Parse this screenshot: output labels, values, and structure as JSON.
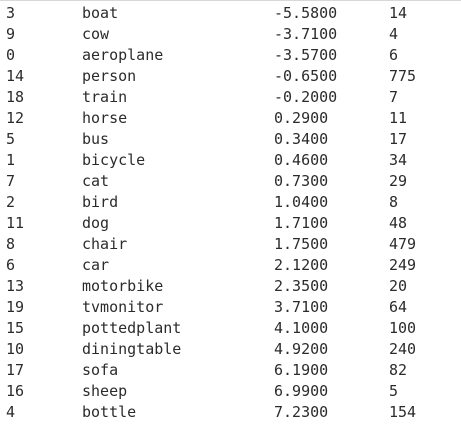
{
  "rows": [
    {
      "id": "3",
      "name": "boat",
      "score": "-5.5800",
      "count": "14"
    },
    {
      "id": "9",
      "name": "cow",
      "score": "-3.7100",
      "count": "4"
    },
    {
      "id": "0",
      "name": "aeroplane",
      "score": "-3.5700",
      "count": "6"
    },
    {
      "id": "14",
      "name": "person",
      "score": "-0.6500",
      "count": "775"
    },
    {
      "id": "18",
      "name": "train",
      "score": "-0.2000",
      "count": "7"
    },
    {
      "id": "12",
      "name": "horse",
      "score": "0.2900",
      "count": "11"
    },
    {
      "id": "5",
      "name": "bus",
      "score": "0.3400",
      "count": "17"
    },
    {
      "id": "1",
      "name": "bicycle",
      "score": "0.4600",
      "count": "34"
    },
    {
      "id": "7",
      "name": "cat",
      "score": "0.7300",
      "count": "29"
    },
    {
      "id": "2",
      "name": "bird",
      "score": "1.0400",
      "count": "8"
    },
    {
      "id": "11",
      "name": "dog",
      "score": "1.7100",
      "count": "48"
    },
    {
      "id": "8",
      "name": "chair",
      "score": "1.7500",
      "count": "479"
    },
    {
      "id": "6",
      "name": "car",
      "score": "2.1200",
      "count": "249"
    },
    {
      "id": "13",
      "name": "motorbike",
      "score": "2.3500",
      "count": "20"
    },
    {
      "id": "19",
      "name": "tvmonitor",
      "score": "3.7100",
      "count": "64"
    },
    {
      "id": "15",
      "name": "pottedplant",
      "score": "4.1000",
      "count": "100"
    },
    {
      "id": "10",
      "name": "diningtable",
      "score": "4.9200",
      "count": "240"
    },
    {
      "id": "17",
      "name": "sofa",
      "score": "6.1900",
      "count": "82"
    },
    {
      "id": "16",
      "name": "sheep",
      "score": "6.9900",
      "count": "5"
    },
    {
      "id": "4",
      "name": "bottle",
      "score": "7.2300",
      "count": "154"
    }
  ]
}
